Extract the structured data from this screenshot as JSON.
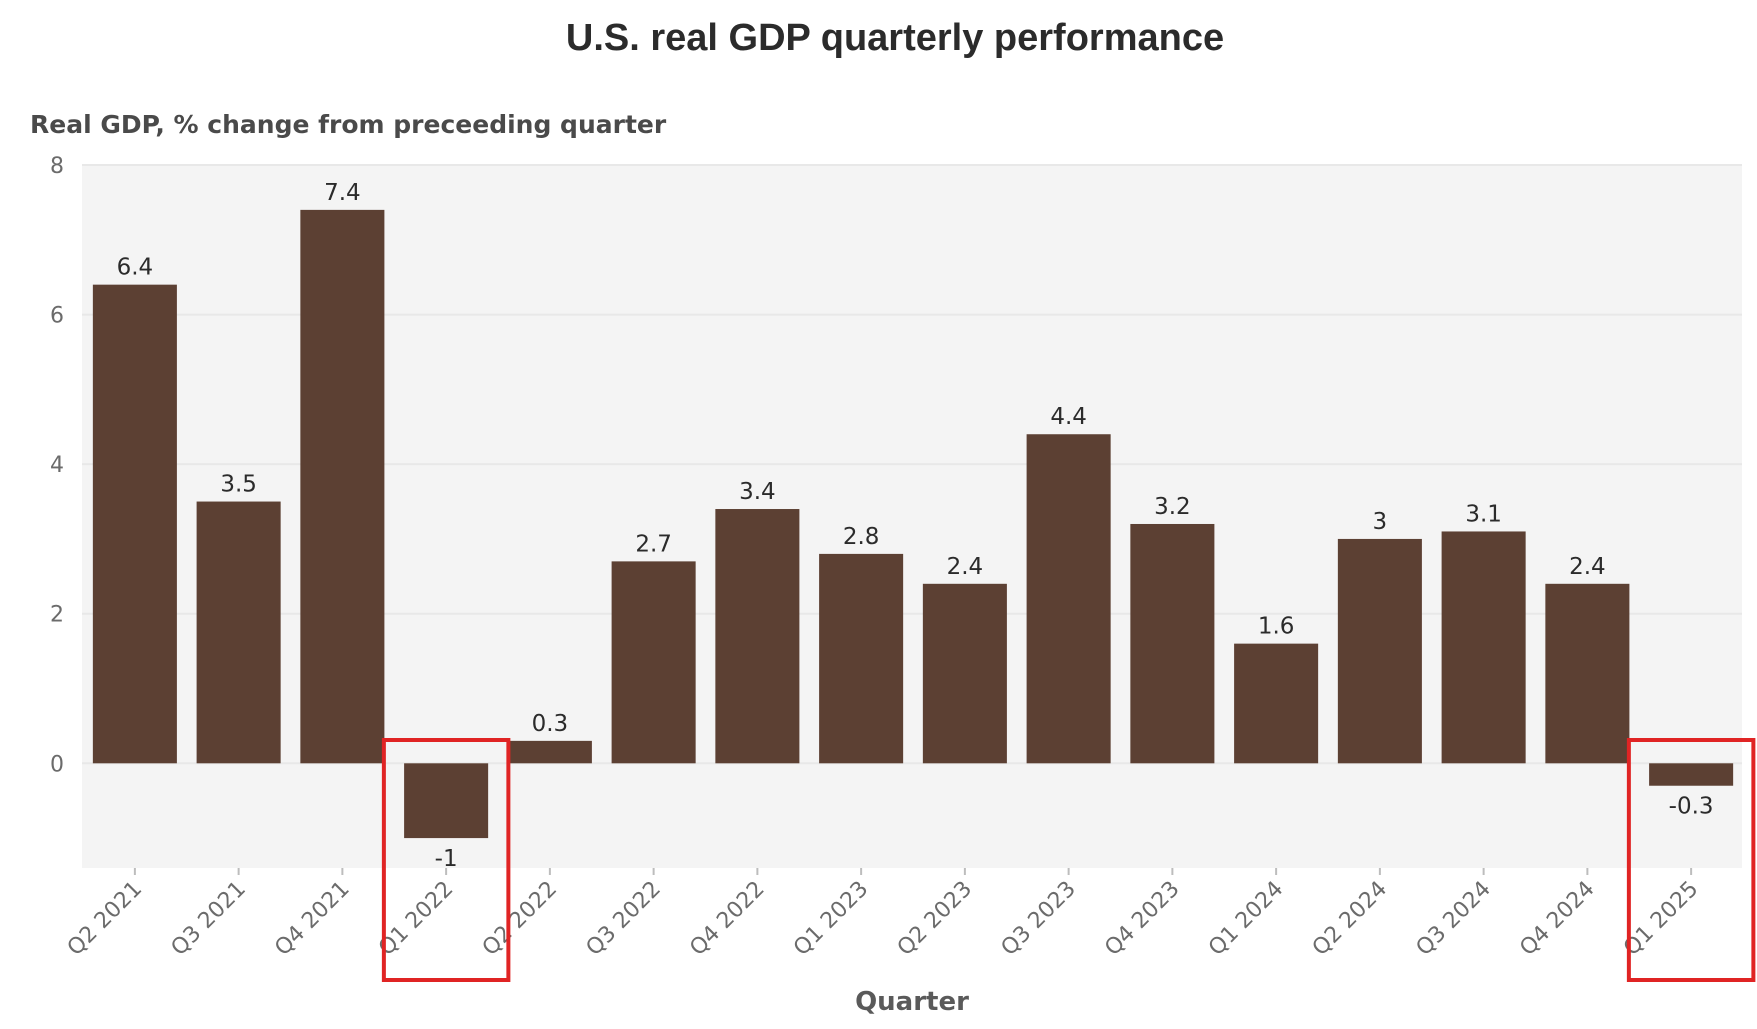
{
  "chart_data": {
    "type": "bar",
    "title": "U.S. real GDP quarterly performance",
    "ylabel": "Real GDP, % change from preceeding quarter",
    "xlabel": "Quarter",
    "categories": [
      "Q2 2021",
      "Q3 2021",
      "Q4 2021",
      "Q1 2022",
      "Q2 2022",
      "Q3 2022",
      "Q4 2022",
      "Q1 2023",
      "Q2 2023",
      "Q3 2023",
      "Q4 2023",
      "Q1 2024",
      "Q2 2024",
      "Q3 2024",
      "Q4 2024",
      "Q1 2025"
    ],
    "values": [
      6.4,
      3.5,
      7.4,
      -1,
      0.3,
      2.7,
      3.4,
      2.8,
      2.4,
      4.4,
      3.2,
      1.6,
      3,
      3.1,
      2.4,
      -0.3
    ],
    "data_labels": [
      "6.4",
      "3.5",
      "7.4",
      "-1",
      "0.3",
      "2.7",
      "3.4",
      "2.8",
      "2.4",
      "4.4",
      "3.2",
      "1.6",
      "3",
      "3.1",
      "2.4",
      "-0.3"
    ],
    "yticks": [
      0,
      2,
      4,
      6,
      8
    ],
    "ylim": [
      -1.4,
      8
    ],
    "grid": true,
    "highlighted_categories": [
      "Q1 2022",
      "Q1 2025"
    ],
    "colors": {
      "bar": "#5c4033",
      "plot_background": "#f4f4f4",
      "gridline": "#e8e8e8",
      "highlight_box": "#e02424"
    }
  }
}
